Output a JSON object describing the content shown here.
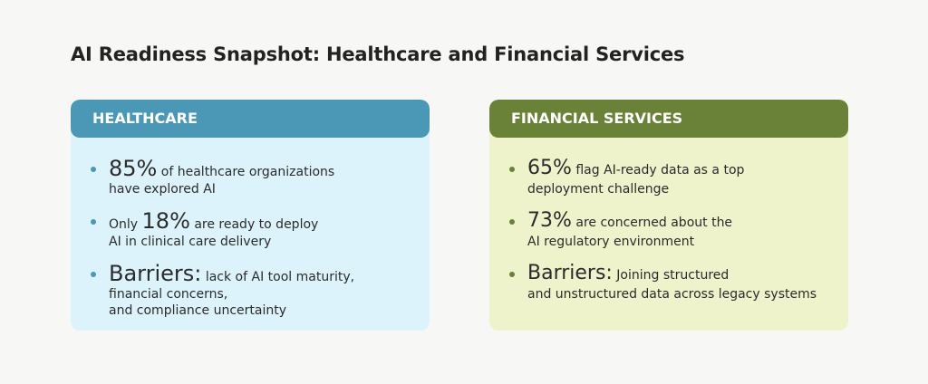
{
  "title": "AI Readiness Snapshot: Healthcare and Financial Services",
  "panels": [
    {
      "heading": "HEALTHCARE",
      "items": [
        {
          "big": "85%",
          "text": [
            "of healthcare organizations",
            "have explored AI"
          ]
        },
        {
          "before": "Only",
          "big": "18%",
          "text": [
            "are ready to deploy",
            "AI in clinical care delivery"
          ]
        },
        {
          "big": "Barriers:",
          "text": [
            "lack of AI tool maturity,",
            "financial concerns,",
            "and compliance uncertainty"
          ]
        }
      ]
    },
    {
      "heading": "FINANCIAL SERVICES",
      "items": [
        {
          "big": "65%",
          "text": [
            "flag AI-ready data as a top",
            "deployment challenge"
          ]
        },
        {
          "big": "73%",
          "text": [
            "are concerned about the",
            "AI regulatory environment"
          ]
        },
        {
          "big": "Barriers:",
          "text": [
            "Joining structured",
            "and unstructured data across legacy systems"
          ]
        }
      ]
    }
  ]
}
